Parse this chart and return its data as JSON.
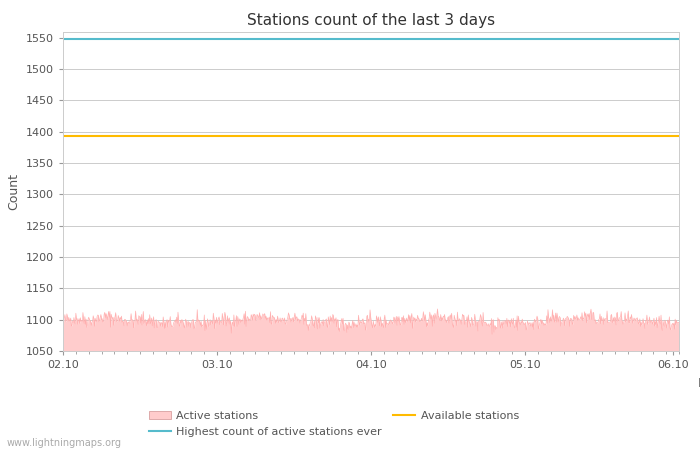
{
  "title": "Stations count of the last 3 days",
  "xlabel": "Day",
  "ylabel": "Count",
  "ylim": [
    1050,
    1560
  ],
  "yticks": [
    1050,
    1100,
    1150,
    1200,
    1250,
    1300,
    1350,
    1400,
    1450,
    1500,
    1550
  ],
  "xlim_start": 0,
  "xlim_end": 96,
  "xtick_positions": [
    0,
    24,
    48,
    72,
    95
  ],
  "xtick_labels": [
    "02.10",
    "03.10",
    "04.10",
    "05.10",
    "06.10"
  ],
  "highest_count_value": 1548,
  "available_stations_value": 1393,
  "active_stations_base": 1050,
  "active_color_fill": "#ffcccc",
  "active_color_line": "#ffaaaa",
  "highest_color": "#55bbcc",
  "available_color": "#ffbb00",
  "background_color": "#ffffff",
  "grid_color": "#cccccc",
  "text_color": "#555555",
  "watermark": "www.lightningmaps.org",
  "title_fontsize": 11,
  "axis_label_fontsize": 9,
  "tick_fontsize": 8,
  "legend_fontsize": 8
}
